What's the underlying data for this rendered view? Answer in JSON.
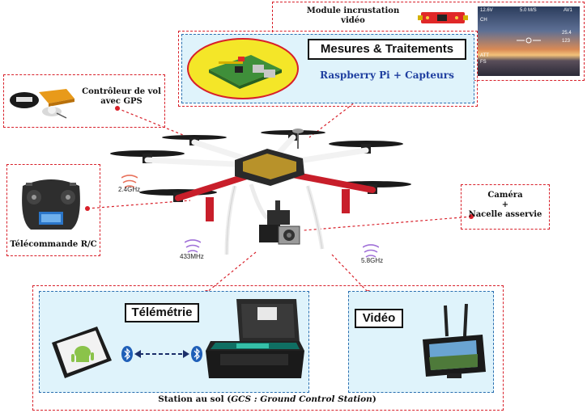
{
  "module_video": {
    "label_line1": "Module incrustation",
    "label_line2": "vidéo"
  },
  "osd": {
    "top_left": "12.6V",
    "top_mid": "5.0 M/S",
    "top_right": "AV1",
    "left1": "CH",
    "left2": "ATT",
    "left3": "FS",
    "right1": "25.4",
    "right2": "123"
  },
  "mesures": {
    "title": "Mesures & Traitements",
    "subtitle": "Raspberry Pi + Capteurs"
  },
  "controleur": {
    "label_line1": "Contrôleur de vol",
    "label_line2": "avec GPS"
  },
  "telecommande": {
    "label": "Télécommande R/C"
  },
  "camera": {
    "line1": "Caméra",
    "line2": "+",
    "line3": "Nacelle asservie"
  },
  "frequencies": {
    "rc": "2.4GHz",
    "telemetry": "433MHz",
    "video": "5.8GHz"
  },
  "telemetrie": {
    "title": "Télémétrie"
  },
  "video": {
    "title": "Vidéo"
  },
  "station": {
    "label_prefix": "Station au sol (",
    "label_italic": "GCS : Ground Control Station",
    "label_suffix": ")"
  },
  "colors": {
    "red_dash": "#d8202a",
    "blue_dash": "#2a6fb0",
    "panel_bg": "#dff3fb",
    "drone_red": "#c81e2a",
    "wave_red": "#e8705a",
    "wave_purple": "#a070d8"
  },
  "icons": [
    "raspberry-pi-icon",
    "gps-module-icon",
    "rc-transmitter-icon",
    "drone-icon",
    "camera-gimbal-icon",
    "tablet-android-icon",
    "bluetooth-icon",
    "ground-station-case-icon",
    "video-monitor-icon"
  ]
}
